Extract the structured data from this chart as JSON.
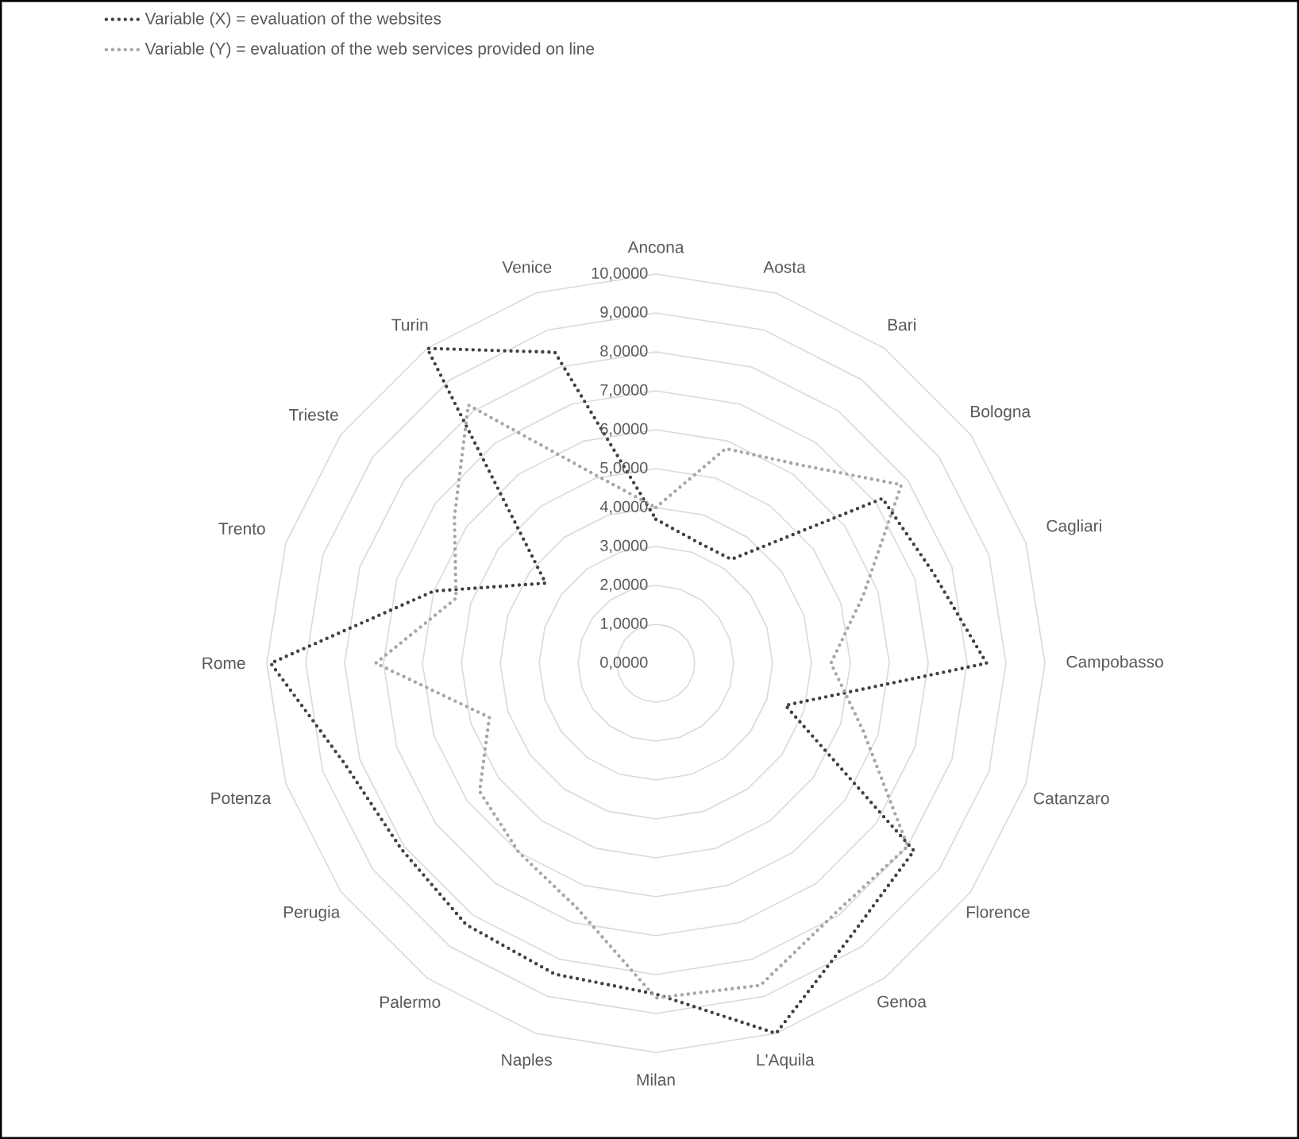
{
  "chart_data": {
    "type": "radar",
    "categories": [
      "Ancona",
      "Aosta",
      "Bari",
      "Bologna",
      "Cagliari",
      "Campobasso",
      "Catanzaro",
      "Florence",
      "Genoa",
      "L'Aquila",
      "Milan",
      "Naples",
      "Palermo",
      "Perugia",
      "Potenza",
      "Rome",
      "Trento",
      "Trieste",
      "Turin",
      "Venice"
    ],
    "series": [
      {
        "name": "Variable (X)  = evaluation of the websites",
        "color": "#404040",
        "values": [
          3.7,
          3.3,
          3.3,
          7.2,
          7.5,
          8.5,
          3.5,
          8.2,
          8.6,
          10.0,
          8.5,
          8.4,
          8.3,
          8.1,
          8.4,
          9.9,
          6.0,
          3.5,
          10.0,
          8.4
        ]
      },
      {
        "name": "Variable (Y) =   evaluation of the web services provided on line",
        "color": "#a6a6a6",
        "values": [
          4.0,
          5.8,
          6.3,
          7.8,
          5.6,
          4.5,
          5.6,
          8.0,
          7.9,
          8.7,
          8.6,
          6.6,
          6.0,
          5.6,
          4.5,
          7.2,
          5.4,
          6.4,
          8.2,
          5.1
        ]
      }
    ],
    "ylim": [
      0,
      10
    ],
    "yticks": [
      {
        "value": 0,
        "label": "0,0000"
      },
      {
        "value": 1,
        "label": "1,0000"
      },
      {
        "value": 2,
        "label": "2,0000"
      },
      {
        "value": 3,
        "label": "3,0000"
      },
      {
        "value": 4,
        "label": "4,0000"
      },
      {
        "value": 5,
        "label": "5,0000"
      },
      {
        "value": 6,
        "label": "6,0000"
      },
      {
        "value": 7,
        "label": "7,0000"
      },
      {
        "value": 8,
        "label": "8,0000"
      },
      {
        "value": 9,
        "label": "9,0000"
      },
      {
        "value": 10,
        "label": "10,0000"
      }
    ],
    "grid": true,
    "legend": "top left",
    "line_style": "dotted"
  }
}
